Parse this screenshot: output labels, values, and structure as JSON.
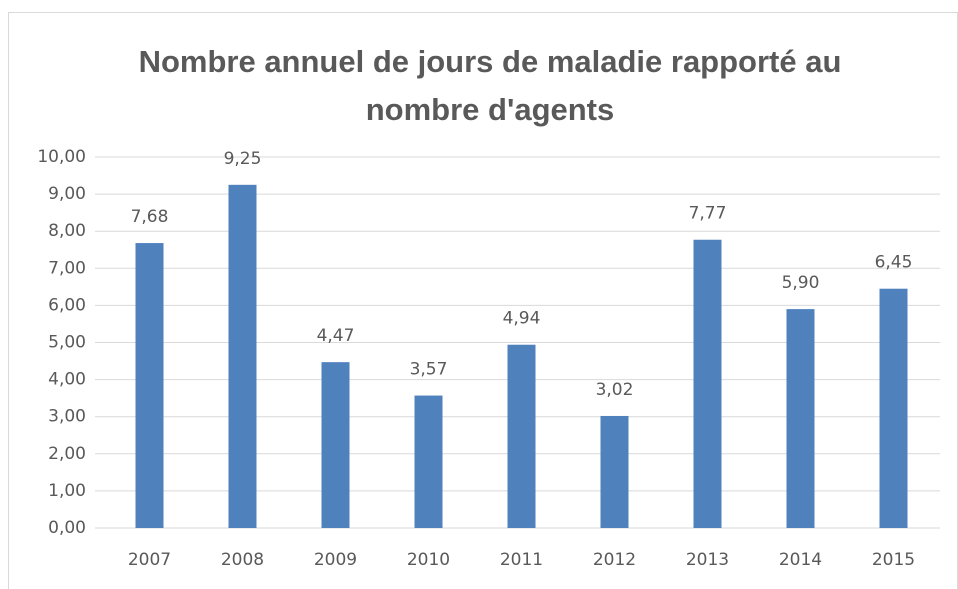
{
  "chart_data": {
    "type": "bar",
    "title": "Nombre annuel de jours de maladie rapporté au nombre d'agents",
    "categories": [
      "2007",
      "2008",
      "2009",
      "2010",
      "2011",
      "2012",
      "2013",
      "2014",
      "2015"
    ],
    "values": [
      7.68,
      9.25,
      4.47,
      3.57,
      4.94,
      3.02,
      7.77,
      5.9,
      6.45
    ],
    "value_labels": [
      "7,68",
      "9,25",
      "4,47",
      "3,57",
      "4,94",
      "3,02",
      "7,77",
      "5,90",
      "6,45"
    ],
    "color": "#4f81bd",
    "ylim": [
      0,
      10
    ],
    "yticks": [
      {
        "value": 0,
        "label": "0,00"
      },
      {
        "value": 1,
        "label": "1,00"
      },
      {
        "value": 2,
        "label": "2,00"
      },
      {
        "value": 3,
        "label": "3,00"
      },
      {
        "value": 4,
        "label": "4,00"
      },
      {
        "value": 5,
        "label": "5,00"
      },
      {
        "value": 6,
        "label": "6,00"
      },
      {
        "value": 7,
        "label": "7,00"
      },
      {
        "value": 8,
        "label": "8,00"
      },
      {
        "value": 9,
        "label": "9,00"
      },
      {
        "value": 10,
        "label": "10,00"
      }
    ],
    "grid": true
  }
}
